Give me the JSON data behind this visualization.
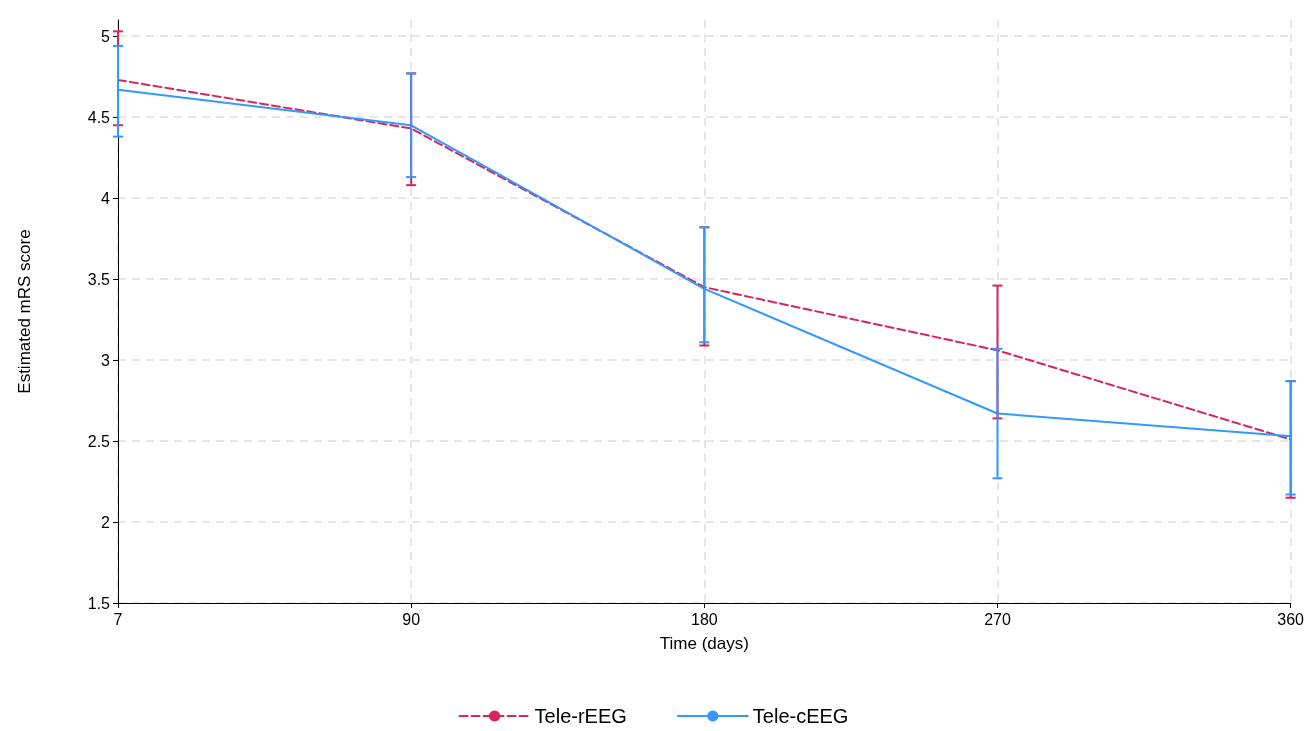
{
  "chart_data": {
    "type": "line",
    "xlabel": "Time (days)",
    "ylabel": "Estimated mRS score",
    "categories": [
      "7",
      "90",
      "180",
      "270",
      "360"
    ],
    "ylim": [
      1.5,
      5.1
    ],
    "yticks": [
      1.5,
      2,
      2.5,
      3,
      3.5,
      4,
      4.5,
      5
    ],
    "grid": true,
    "legend": "bottom",
    "marker": "none",
    "series": [
      {
        "name": "Tele-rEEG",
        "color": "#d6265b",
        "line_style": "dashed",
        "values": [
          4.73,
          4.43,
          3.45,
          3.06,
          2.51
        ],
        "errors": [
          [
            4.45,
            5.03
          ],
          [
            4.08,
            4.77
          ],
          [
            3.09,
            3.82
          ],
          [
            2.64,
            3.46
          ],
          [
            2.15,
            2.87
          ]
        ]
      },
      {
        "name": "Tele-cEEG",
        "color": "#3399ff",
        "line_style": "solid",
        "values": [
          4.67,
          4.45,
          3.44,
          2.67,
          2.53
        ],
        "errors": [
          [
            4.38,
            4.94
          ],
          [
            4.13,
            4.77
          ],
          [
            3.11,
            3.82
          ],
          [
            2.27,
            3.07
          ],
          [
            2.17,
            2.87
          ]
        ]
      }
    ]
  }
}
